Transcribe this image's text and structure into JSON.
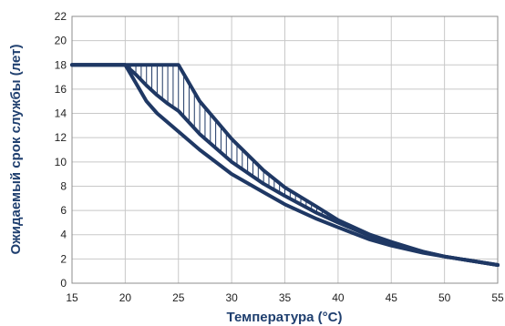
{
  "chart_data": {
    "type": "line",
    "xlabel": "Температура (°С)",
    "ylabel": "Ожидаемый срок службы (лет)",
    "xlim": [
      15,
      55
    ],
    "ylim": [
      0,
      22
    ],
    "xticks": [
      15,
      20,
      25,
      30,
      35,
      40,
      45,
      50,
      55
    ],
    "yticks": [
      0,
      2,
      4,
      6,
      8,
      10,
      12,
      14,
      16,
      18,
      20,
      22
    ],
    "grid": true,
    "legend": "none",
    "line_color": "#1f3864",
    "series": [
      {
        "x": [
          15,
          20,
          21,
          22,
          23,
          25,
          27,
          30,
          33,
          35,
          38,
          40,
          43,
          45,
          48,
          50,
          55
        ],
        "y": [
          18,
          18,
          16.5,
          15,
          14,
          12.5,
          11,
          9,
          7.5,
          6.5,
          5.3,
          4.6,
          3.6,
          3.1,
          2.5,
          2.2,
          1.5
        ]
      },
      {
        "x": [
          15,
          20,
          21,
          22,
          23,
          24,
          25,
          27,
          30,
          33,
          35,
          38,
          40,
          43,
          45,
          48,
          50,
          55
        ],
        "y": [
          18,
          18,
          17.2,
          16.3,
          15.5,
          14.8,
          14.2,
          12.3,
          10,
          8.2,
          7.2,
          5.8,
          5,
          3.9,
          3.3,
          2.6,
          2.2,
          1.5
        ]
      },
      {
        "x": [
          15,
          20,
          22,
          25,
          27,
          30,
          33,
          35,
          38,
          40,
          43,
          45,
          48,
          50,
          55
        ],
        "y": [
          18,
          18,
          18,
          18,
          15,
          11.9,
          9.3,
          7.9,
          6.3,
          5.2,
          4,
          3.4,
          2.6,
          2.2,
          1.5
        ]
      }
    ]
  }
}
